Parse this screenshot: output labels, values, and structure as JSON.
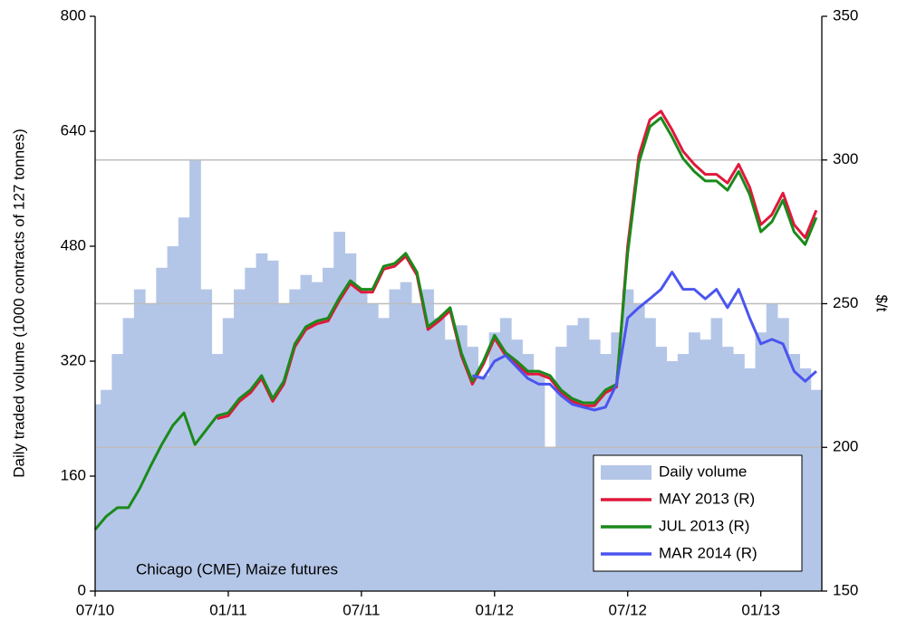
{
  "chart_data": {
    "type": "bar-line",
    "annotation": "Chicago (CME) Maize futures",
    "ylabel": "Daily traded volume (1000 contracts of 127 tonnes)",
    "y2label": "$/t",
    "categories": [
      "07/10",
      null,
      null,
      null,
      null,
      null,
      null,
      null,
      null,
      null,
      null,
      null,
      "01/11",
      null,
      null,
      null,
      null,
      null,
      null,
      null,
      null,
      null,
      null,
      null,
      "07/11",
      null,
      null,
      null,
      null,
      null,
      null,
      null,
      null,
      null,
      null,
      null,
      "01/12",
      null,
      null,
      null,
      null,
      null,
      null,
      null,
      null,
      null,
      null,
      null,
      "07/12",
      null,
      null,
      null,
      null,
      null,
      null,
      null,
      null,
      null,
      null,
      null,
      "01/13",
      null,
      null,
      null,
      null,
      null
    ],
    "ylim": [
      0,
      800
    ],
    "yticks": [
      0,
      160,
      320,
      480,
      640,
      800
    ],
    "y2lim": [
      150,
      350
    ],
    "y2ticks": [
      150,
      200,
      250,
      300,
      350
    ],
    "grid": "y2",
    "legend": "lower right",
    "series": [
      {
        "name": "Daily volume",
        "type": "bar",
        "axis": "y",
        "color": "#b4c6e7",
        "values": [
          260,
          280,
          330,
          380,
          420,
          400,
          450,
          480,
          520,
          600,
          420,
          330,
          380,
          420,
          450,
          470,
          460,
          400,
          420,
          440,
          430,
          450,
          500,
          470,
          420,
          400,
          380,
          420,
          430,
          400,
          420,
          380,
          350,
          370,
          340,
          300,
          360,
          380,
          350,
          330,
          300,
          200,
          340,
          370,
          380,
          350,
          330,
          360,
          420,
          400,
          380,
          340,
          320,
          330,
          360,
          350,
          380,
          340,
          330,
          310,
          360,
          400,
          380,
          330,
          310,
          280
        ]
      },
      {
        "name": "MAY 2013 (R)",
        "type": "line",
        "axis": "y2",
        "color": "#e0183c",
        "values": [
          null,
          null,
          null,
          null,
          null,
          null,
          null,
          null,
          null,
          null,
          null,
          210,
          211,
          216,
          219,
          224,
          216,
          222,
          235,
          241,
          243,
          244,
          251,
          257,
          254,
          254,
          262,
          263,
          266.5,
          260,
          241,
          244,
          247.6,
          232,
          222,
          229,
          238,
          232,
          229,
          225.5,
          225.5,
          224,
          219,
          216,
          214.5,
          214.5,
          219,
          221,
          270,
          301.5,
          314,
          317,
          310.5,
          303,
          298.5,
          295,
          295,
          292,
          298.5,
          290.5,
          277.5,
          281,
          288.5,
          277.5,
          273,
          282.5
        ]
      },
      {
        "name": "JUL 2013 (R)",
        "type": "line",
        "axis": "y2",
        "color": "#1a8a1a",
        "values": [
          171.4,
          176,
          179,
          179,
          185.6,
          193.5,
          201,
          207.6,
          212,
          201,
          206,
          211,
          212,
          217,
          220,
          225,
          217,
          223,
          236,
          242,
          244,
          245,
          252,
          258,
          255,
          255,
          263,
          264,
          267.5,
          261,
          242,
          245,
          248.6,
          233,
          223,
          230,
          239,
          233,
          230,
          226.5,
          226.5,
          225,
          220,
          217,
          215.5,
          215.5,
          220,
          222,
          267.5,
          299,
          311.6,
          314.7,
          308,
          300.5,
          296,
          292.7,
          292.7,
          289.5,
          296,
          288,
          275,
          278.5,
          286,
          275,
          270.6,
          280
        ]
      },
      {
        "name": "MAR 2014 (R)",
        "type": "line",
        "axis": "y2",
        "color": "#4a55f0",
        "values": [
          null,
          null,
          null,
          null,
          null,
          null,
          null,
          null,
          null,
          null,
          null,
          null,
          null,
          null,
          null,
          null,
          null,
          null,
          null,
          null,
          null,
          null,
          null,
          null,
          null,
          null,
          null,
          null,
          null,
          null,
          null,
          null,
          null,
          null,
          225,
          224,
          230,
          232,
          228,
          224,
          222,
          222,
          218,
          215,
          214,
          213,
          214,
          222,
          245,
          248.6,
          251.7,
          255,
          261,
          255,
          255,
          251.7,
          255,
          248.6,
          255,
          245,
          236,
          237.6,
          236,
          226.5,
          223,
          226.5
        ]
      }
    ]
  }
}
